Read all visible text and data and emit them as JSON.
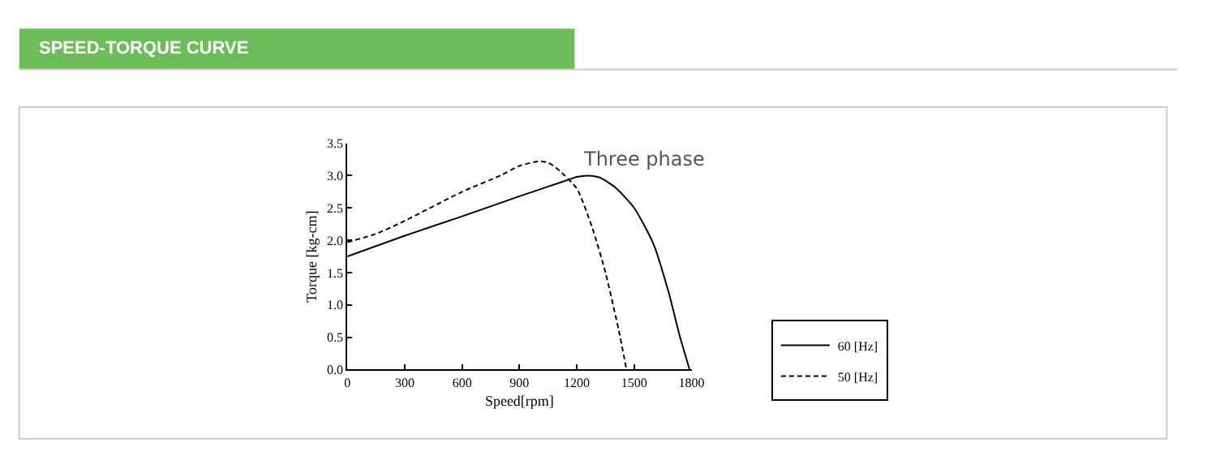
{
  "chart_data": {
    "type": "line",
    "title": "SPEED-TORQUE CURVE",
    "subtitle": "Three phase",
    "xlabel": "Speed[rpm]",
    "ylabel": "Torque [kg-cm]",
    "xlim": [
      0,
      1800
    ],
    "xticks": [
      0,
      300,
      600,
      900,
      1200,
      1500,
      1800
    ],
    "ylim": [
      0,
      3.5
    ],
    "yticks": [
      {
        "value": 0,
        "label": "0.0"
      },
      0.5,
      {
        "value": 1,
        "label": "1.0"
      },
      1.5,
      {
        "value": 2,
        "label": "2.0"
      },
      2.5,
      {
        "value": 3,
        "label": "3.0"
      },
      3.5
    ],
    "legend": "right",
    "marker": "none",
    "series": [
      {
        "name": "60 [Hz]",
        "color": "#000000",
        "line_style": "solid",
        "x": [
          0,
          300,
          600,
          900,
          1150,
          1200,
          1260,
          1320,
          1400,
          1500,
          1600,
          1680,
          1740,
          1790
        ],
        "values": [
          1.75,
          2.07,
          2.37,
          2.68,
          2.93,
          2.98,
          3.0,
          2.97,
          2.82,
          2.5,
          1.95,
          1.2,
          0.5,
          0
        ]
      },
      {
        "name": "50 [Hz]",
        "color": "#000000",
        "line_style": "dashed",
        "x": [
          0,
          150,
          300,
          600,
          800,
          900,
          1000,
          1050,
          1100,
          1200,
          1280,
          1350,
          1420,
          1460
        ],
        "values": [
          1.97,
          2.1,
          2.3,
          2.75,
          3.0,
          3.15,
          3.22,
          3.2,
          3.1,
          2.8,
          2.2,
          1.5,
          0.6,
          0
        ]
      }
    ]
  }
}
